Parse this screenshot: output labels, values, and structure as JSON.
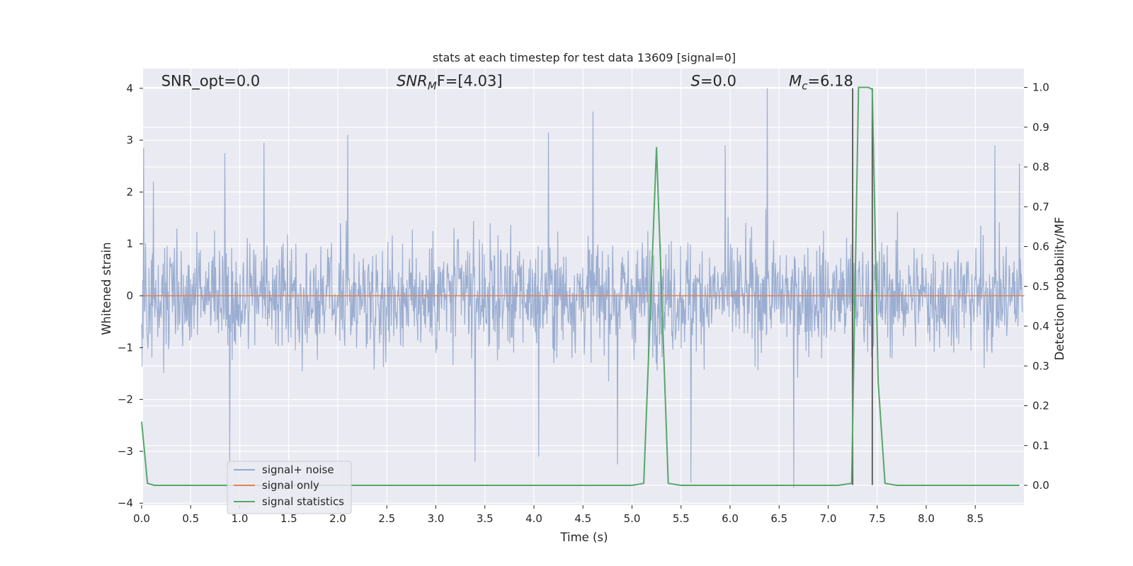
{
  "chart_data": {
    "type": "line",
    "title": "stats at each timestep for test data 13609 [signal=0]",
    "xlabel": "Time (s)",
    "ylabel": "Whitened strain",
    "y2label": "Detection probability/MF",
    "xlim": [
      0.0,
      9.0
    ],
    "ylim": [
      -4.2,
      4.4
    ],
    "y2lim": [
      -0.045,
      1.045
    ],
    "x_ticks": [
      "0.0",
      "0.5",
      "1.0",
      "1.5",
      "2.0",
      "2.5",
      "3.0",
      "3.5",
      "4.0",
      "4.5",
      "5.0",
      "5.5",
      "6.0",
      "6.5",
      "7.0",
      "7.5",
      "8.0",
      "8.5"
    ],
    "y_ticks": [
      "−4",
      "−3",
      "−2",
      "−1",
      "0",
      "1",
      "2",
      "3",
      "4"
    ],
    "y2_ticks": [
      "0.0",
      "0.1",
      "0.2",
      "0.3",
      "0.4",
      "0.5",
      "0.6",
      "0.7",
      "0.8",
      "0.9",
      "1.0"
    ],
    "grid": true,
    "legend_position": "lower-left",
    "series": [
      {
        "name": "signal+ noise",
        "color": "#4c72b0",
        "axis": "left",
        "kind": "noise",
        "sample_count": 1800,
        "typical_range": [
          -1.4,
          1.7
        ],
        "peaks": [
          [
            0.02,
            2.85
          ],
          [
            0.12,
            2.2
          ],
          [
            0.9,
            -3.3
          ],
          [
            0.85,
            2.75
          ],
          [
            1.25,
            2.95
          ],
          [
            2.1,
            3.1
          ],
          [
            3.4,
            -3.2
          ],
          [
            4.15,
            3.15
          ],
          [
            4.05,
            -3.1
          ],
          [
            4.6,
            3.55
          ],
          [
            4.85,
            -3.25
          ],
          [
            5.6,
            -3.6
          ],
          [
            5.95,
            2.9
          ],
          [
            6.38,
            4.0
          ],
          [
            6.65,
            -3.7
          ],
          [
            7.25,
            -3.1
          ],
          [
            8.7,
            2.9
          ],
          [
            8.95,
            2.55
          ]
        ]
      },
      {
        "name": "signal only",
        "color": "#dd8452",
        "axis": "left",
        "x": [
          0.0,
          9.0
        ],
        "y": [
          0.0,
          0.0
        ]
      },
      {
        "name": "signal statistics",
        "color": "#55a868",
        "axis": "right",
        "x": [
          0.0,
          0.06,
          0.13,
          0.2,
          5.0,
          5.12,
          5.25,
          5.37,
          5.5,
          7.1,
          7.24,
          7.31,
          7.36,
          7.41,
          7.45,
          7.51,
          7.58,
          7.7,
          8.95
        ],
        "y": [
          0.16,
          0.005,
          0.0,
          0.0,
          0.0,
          0.005,
          0.85,
          0.005,
          0.0,
          0.0,
          0.005,
          1.0,
          1.0,
          1.0,
          0.995,
          0.26,
          0.005,
          0.0,
          0.0
        ]
      }
    ],
    "vlines": [
      {
        "x": 7.25,
        "y_from": -3.65,
        "y_to": 4.0,
        "color": "#555555"
      },
      {
        "x": 7.45,
        "y_from": -3.65,
        "y_to": 4.0,
        "color": "#555555"
      }
    ],
    "annotations": [
      {
        "text": "SNR_opt=0.0",
        "x": 0.2,
        "y": 4.1
      },
      {
        "text_main": "SNR",
        "text_sub": "M",
        "text_rest": "F=[4.03]",
        "x": 2.6,
        "y": 4.1
      },
      {
        "text_main": "S",
        "text_rest": "=0.0",
        "x": 5.6,
        "y": 4.1
      },
      {
        "text_main": "M",
        "text_sub": "c",
        "text_rest": "=6.18",
        "x": 6.6,
        "y": 4.1
      }
    ]
  }
}
